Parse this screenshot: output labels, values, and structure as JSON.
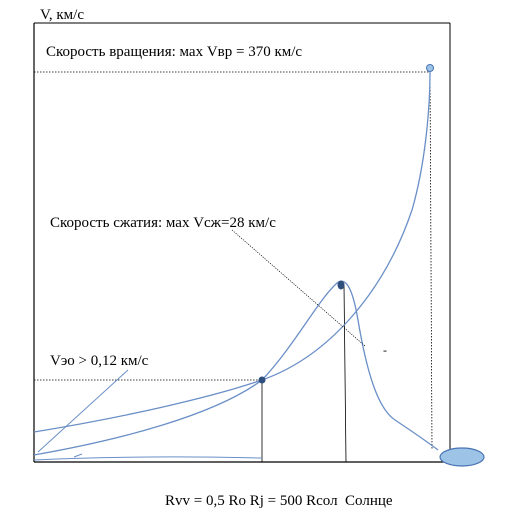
{
  "diagram": {
    "y_axis_label": "V, км/с",
    "rotation_label": "Скорость вращения: мах Vвр = 370 км/с",
    "compression_label": "Скорость сжатия: мах Vсж=28 км/с",
    "escape_label": "Vэо > 0,12 км/с",
    "radius_label": "Rvv = 0,5 Ro Rj = 500 Rсол  Солнце",
    "dash_mark": "-",
    "colors": {
      "curve": "#6a8fc7",
      "marker": "#2f4f7f",
      "sun_fill": "#9dc3e6",
      "sun_stroke": "#4a74b4",
      "axis": "#000000",
      "guide": "#000000"
    }
  }
}
